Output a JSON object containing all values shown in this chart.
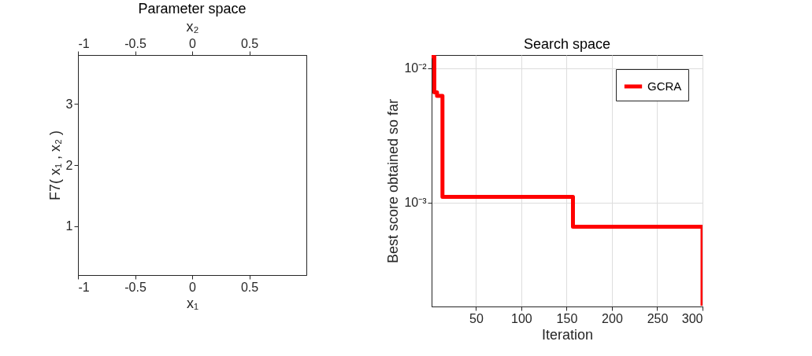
{
  "chart_data": [
    {
      "type": "scatter",
      "title": "Parameter space",
      "xlabel": "x₁",
      "ylabel": "F7( x₁ , x₂ )",
      "x2label": "x₂",
      "xlim": [
        -1,
        1
      ],
      "xticks": [
        -1,
        -0.5,
        0,
        0.5
      ],
      "x2lim": [
        -1,
        1
      ],
      "x2ticks": [
        -1,
        -0.5,
        0,
        0.5
      ],
      "ylim": [
        0.2,
        3.8
      ],
      "yticks": [
        1,
        2,
        3
      ]
    },
    {
      "type": "step",
      "title": "Search space",
      "xlabel": "Iteration",
      "ylabel": "Best score obtained so far",
      "x": [
        1,
        4,
        7,
        13,
        157,
        300
      ],
      "series": [
        {
          "name": "GCRA",
          "color": "#ff0000",
          "values": [
            0.0122,
            0.0066,
            0.0062,
            0.0011,
            0.00066,
            0.00017
          ]
        }
      ],
      "xlim": [
        1,
        300
      ],
      "xticks": [
        50,
        100,
        150,
        200,
        250,
        300
      ],
      "ylim": [
        0.000168,
        0.0125
      ],
      "yticks": [
        {
          "value": 0.001,
          "label": "10⁻³"
        },
        {
          "value": 0.01,
          "label": "10⁻²"
        }
      ],
      "log": true,
      "grid": true,
      "legend": "top right"
    }
  ]
}
